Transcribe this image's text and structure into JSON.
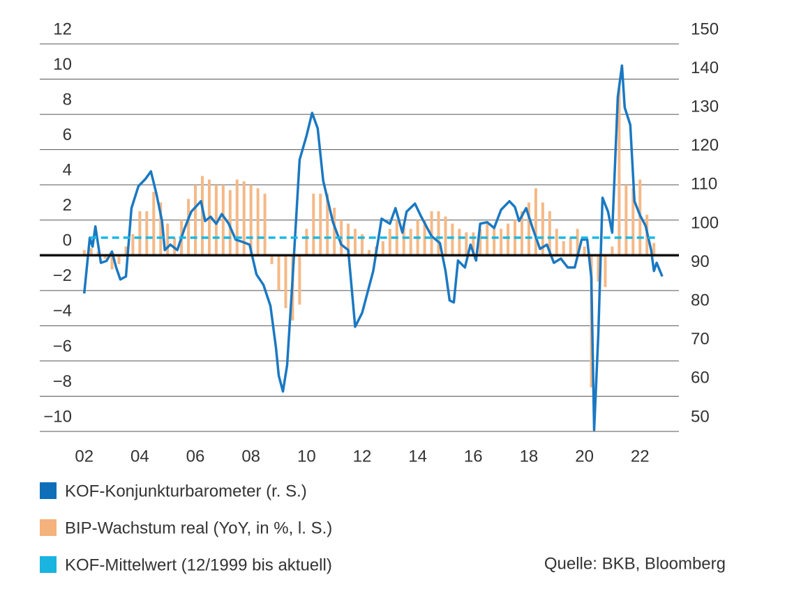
{
  "chart_data": {
    "type": "combo",
    "source": "Quelle: BKB, Bloomberg",
    "xlim": [
      2000.4,
      2023.4
    ],
    "xticks": [
      {
        "value": 2002,
        "label": "02"
      },
      {
        "value": 2004,
        "label": "04"
      },
      {
        "value": 2006,
        "label": "06"
      },
      {
        "value": 2008,
        "label": "08"
      },
      {
        "value": 2010,
        "label": "10"
      },
      {
        "value": 2012,
        "label": "12"
      },
      {
        "value": 2014,
        "label": "14"
      },
      {
        "value": 2016,
        "label": "16"
      },
      {
        "value": 2018,
        "label": "18"
      },
      {
        "value": 2020,
        "label": "20"
      },
      {
        "value": 2022,
        "label": "22"
      }
    ],
    "ylim": [
      -10,
      12
    ],
    "yticks": [
      {
        "value": -10,
        "label": "−10"
      },
      {
        "value": -8,
        "label": "−8"
      },
      {
        "value": -6,
        "label": "−6"
      },
      {
        "value": -4,
        "label": "−4"
      },
      {
        "value": -2,
        "label": "−2"
      },
      0,
      2,
      4,
      6,
      8,
      10,
      12
    ],
    "y2lim": [
      50,
      150
    ],
    "y2ticks": [
      50,
      60,
      70,
      80,
      90,
      100,
      110,
      120,
      130,
      140,
      150
    ],
    "grid": true,
    "series": [
      {
        "name": "KOF-Konjunkturbarometer (r. S.)",
        "type": "line",
        "axis": "y2",
        "color": "#1a78c2",
        "legend_color": "#0e6fb8",
        "x": [
          2002.0,
          2002.2,
          2002.3,
          2002.4,
          2002.6,
          2002.8,
          2003.0,
          2003.15,
          2003.3,
          2003.5,
          2003.7,
          2003.95,
          2004.2,
          2004.4,
          2004.6,
          2004.8,
          2004.9,
          2005.1,
          2005.35,
          2005.6,
          2005.85,
          2006.2,
          2006.35,
          2006.55,
          2006.75,
          2006.95,
          2007.2,
          2007.45,
          2007.7,
          2007.95,
          2008.2,
          2008.45,
          2008.7,
          2008.9,
          2009.0,
          2009.15,
          2009.3,
          2009.5,
          2009.75,
          2010.0,
          2010.2,
          2010.4,
          2010.6,
          2010.95,
          2011.25,
          2011.5,
          2011.75,
          2012.0,
          2012.4,
          2012.7,
          2013.0,
          2013.2,
          2013.45,
          2013.6,
          2013.9,
          2014.1,
          2014.5,
          2014.8,
          2015.0,
          2015.15,
          2015.3,
          2015.45,
          2015.7,
          2015.9,
          2016.1,
          2016.25,
          2016.5,
          2016.75,
          2017.0,
          2017.3,
          2017.5,
          2017.65,
          2017.9,
          2018.15,
          2018.4,
          2018.65,
          2018.9,
          2019.15,
          2019.4,
          2019.65,
          2019.9,
          2020.1,
          2020.25,
          2020.35,
          2020.5,
          2020.65,
          2020.85,
          2021.0,
          2021.2,
          2021.35,
          2021.45,
          2021.65,
          2021.8,
          2022.0,
          2022.2,
          2022.4,
          2022.5,
          2022.6,
          2022.8
        ],
        "values": [
          85.6,
          100,
          97.7,
          102.9,
          93.5,
          94,
          96.4,
          92.3,
          89.2,
          90,
          107.6,
          113.3,
          115.1,
          117.1,
          111.2,
          104.3,
          96.8,
          98.2,
          96.8,
          102.2,
          106.7,
          109.4,
          104.3,
          105.4,
          103.6,
          106.1,
          103.6,
          99.5,
          98.9,
          98.2,
          90.5,
          87.8,
          82.4,
          71.6,
          64.4,
          60.3,
          67.1,
          89.6,
          120.1,
          126.3,
          132.2,
          128.2,
          114.7,
          104,
          98.2,
          96.8,
          77,
          80.6,
          91.4,
          104.9,
          103.6,
          107.6,
          101.3,
          106.7,
          108.8,
          105.8,
          100.4,
          98.6,
          91.4,
          83.8,
          83.3,
          94.1,
          92.3,
          98.2,
          94.1,
          103.6,
          104,
          102.5,
          107.2,
          109.4,
          107.9,
          104.3,
          107.6,
          102.2,
          97.1,
          98.2,
          93.5,
          94.6,
          92.3,
          92.3,
          99.5,
          99.5,
          89.6,
          50.4,
          75.2,
          110.3,
          106.7,
          101.3,
          136.3,
          144.4,
          133.6,
          129.1,
          109.4,
          105.8,
          103.1,
          96.8,
          91.4,
          93.5,
          90
        ]
      },
      {
        "name": "BIP-Wachstum real (YoY, in %, l. S.)",
        "type": "bar",
        "axis": "y",
        "color": "#f5b986",
        "legend_color": "#f4b27c",
        "x": [
          2002.0,
          2002.25,
          2002.5,
          2002.75,
          2003.0,
          2003.25,
          2003.5,
          2003.75,
          2004.0,
          2004.25,
          2004.5,
          2004.75,
          2005.0,
          2005.25,
          2005.5,
          2005.75,
          2006.0,
          2006.25,
          2006.5,
          2006.75,
          2007.0,
          2007.25,
          2007.5,
          2007.75,
          2008.0,
          2008.25,
          2008.5,
          2008.75,
          2009.0,
          2009.25,
          2009.5,
          2009.75,
          2010.0,
          2010.25,
          2010.5,
          2010.75,
          2011.0,
          2011.25,
          2011.5,
          2011.75,
          2012.0,
          2012.25,
          2012.5,
          2012.75,
          2013.0,
          2013.25,
          2013.5,
          2013.75,
          2014.0,
          2014.25,
          2014.5,
          2014.75,
          2015.0,
          2015.25,
          2015.5,
          2015.75,
          2016.0,
          2016.25,
          2016.5,
          2016.75,
          2017.0,
          2017.25,
          2017.5,
          2017.75,
          2018.0,
          2018.25,
          2018.5,
          2018.75,
          2019.0,
          2019.25,
          2019.5,
          2019.75,
          2020.0,
          2020.25,
          2020.5,
          2020.75,
          2021.0,
          2021.25,
          2021.5,
          2021.75,
          2022.0,
          2022.25,
          2022.5
        ],
        "values": [
          0.3,
          0.4,
          0.2,
          -0.2,
          -0.8,
          -0.5,
          0.5,
          1.2,
          2.5,
          2.5,
          3.6,
          3.0,
          1.8,
          1.0,
          2.0,
          3.2,
          4.0,
          4.5,
          4.3,
          4.0,
          4.0,
          3.7,
          4.3,
          4.2,
          4.0,
          3.8,
          3.5,
          -0.5,
          -2.0,
          -3.0,
          -3.7,
          -2.8,
          1.5,
          3.5,
          3.5,
          3.5,
          2.7,
          2.0,
          1.8,
          1.5,
          1.2,
          0.3,
          0.5,
          0.8,
          1.5,
          2.0,
          1.8,
          1.5,
          2.0,
          2.0,
          2.5,
          2.5,
          2.2,
          1.8,
          1.5,
          1.3,
          1.3,
          1.5,
          1.8,
          1.5,
          1.5,
          1.8,
          2.0,
          2.5,
          3.0,
          3.8,
          3.0,
          2.5,
          1.5,
          0.8,
          1.0,
          1.5,
          0.5,
          -7.5,
          -1.5,
          -1.8,
          0.5,
          9.5,
          4.0,
          3.8,
          4.3,
          2.3,
          0.7
        ]
      },
      {
        "name": "KOF-Mittelwert (12/1999 bis aktuell)",
        "type": "dashed",
        "axis": "y2",
        "color": "#1ab8e2",
        "legend_color": "#1ab4e0",
        "x": [
          2002.2,
          2022.65
        ],
        "values": [
          100,
          100
        ]
      }
    ]
  }
}
